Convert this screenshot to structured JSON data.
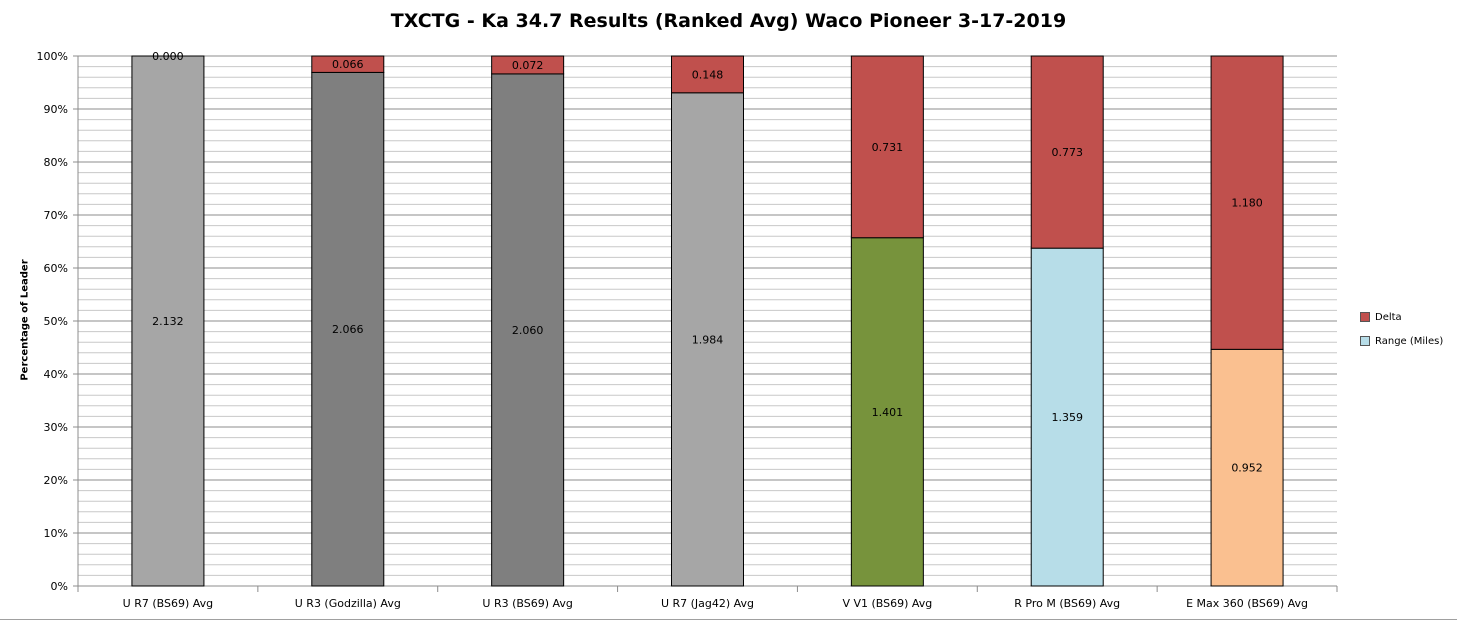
{
  "chart_data": {
    "type": "bar",
    "stacked": true,
    "normalized": true,
    "title": "TXCTG - Ka 34.7 Results (Ranked Avg) Waco Pioneer 3-17-2019",
    "ylabel": "Percentage of Leader",
    "xlabel": "",
    "ylim": [
      0,
      100
    ],
    "yticks": [
      "0%",
      "10%",
      "20%",
      "30%",
      "40%",
      "50%",
      "60%",
      "70%",
      "80%",
      "90%",
      "100%"
    ],
    "grid": true,
    "legend_position": "right",
    "categories": [
      "U R7 (BS69) Avg",
      "U R3 (Godzilla) Avg",
      "U R3 (BS69) Avg",
      "U R7 (Jag42) Avg",
      "V V1 (BS69) Avg",
      "R Pro M (BS69) Avg",
      "E Max 360 (BS69) Avg"
    ],
    "series": [
      {
        "name": "Range (Miles)",
        "values": [
          2.132,
          2.066,
          2.06,
          1.984,
          1.401,
          1.359,
          0.952
        ],
        "labels": [
          "2.132",
          "2.066",
          "2.060",
          "1.984",
          "1.401",
          "1.359",
          "0.952"
        ],
        "color": "#b7dde8",
        "point_colors": [
          "#a6a6a6",
          "#7f7f7f",
          "#7f7f7f",
          "#a6a6a6",
          "#77933c",
          "#b7dde8",
          "#fac090"
        ]
      },
      {
        "name": "Delta",
        "values": [
          0.0,
          0.066,
          0.072,
          0.148,
          0.731,
          0.773,
          1.18
        ],
        "labels": [
          "0.000",
          "0.066",
          "0.072",
          "0.148",
          "0.731",
          "0.773",
          "1.180"
        ],
        "color": "#c0504d"
      }
    ]
  },
  "legend": {
    "items": [
      {
        "label": "Delta",
        "color": "#c0504d"
      },
      {
        "label": "Range (Miles)",
        "color": "#b7dde8"
      }
    ]
  }
}
